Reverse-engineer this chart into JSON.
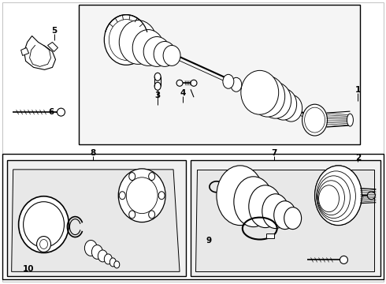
{
  "bg": "#ffffff",
  "fg": "#000000",
  "gray": "#d8d8d8",
  "light_gray": "#ebebeb",
  "fig_w": 4.9,
  "fig_h": 3.6,
  "dpi": 100
}
